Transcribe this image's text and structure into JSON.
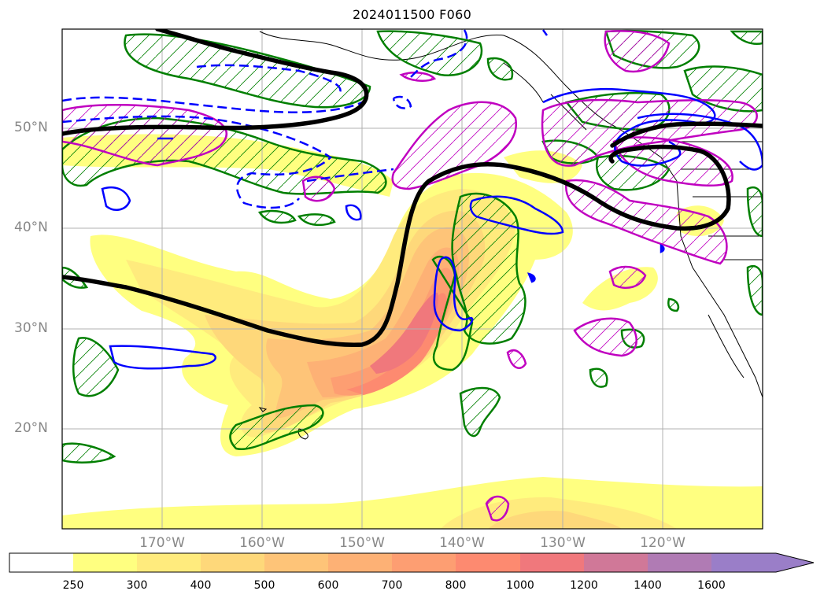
{
  "title": "2024011500 F060",
  "lat_labels": [
    "50°N",
    "40°N",
    "30°N",
    "20°N"
  ],
  "lon_labels": [
    "170°W",
    "160°W",
    "150°W",
    "140°W",
    "130°W",
    "120°W"
  ],
  "colorbar": {
    "ticks": [
      "250",
      "300",
      "400",
      "500",
      "600",
      "700",
      "800",
      "1000",
      "1200",
      "1400",
      "1600"
    ],
    "colors": [
      "#ffffff",
      "#ffff80",
      "#ffeb7d",
      "#fed87a",
      "#fec478",
      "#fdb175",
      "#fd9e72",
      "#fd8a70",
      "#f0787c",
      "#d07898",
      "#b07bb4",
      "#9a7ec8"
    ],
    "extend": "max"
  },
  "contour_colors": {
    "jet_axis": "#000000",
    "green_hatched": "#007f00",
    "blue": "#0000ff",
    "magenta": "#c000c0",
    "gridline": "#b0b0b0",
    "coast": "#000000"
  }
}
